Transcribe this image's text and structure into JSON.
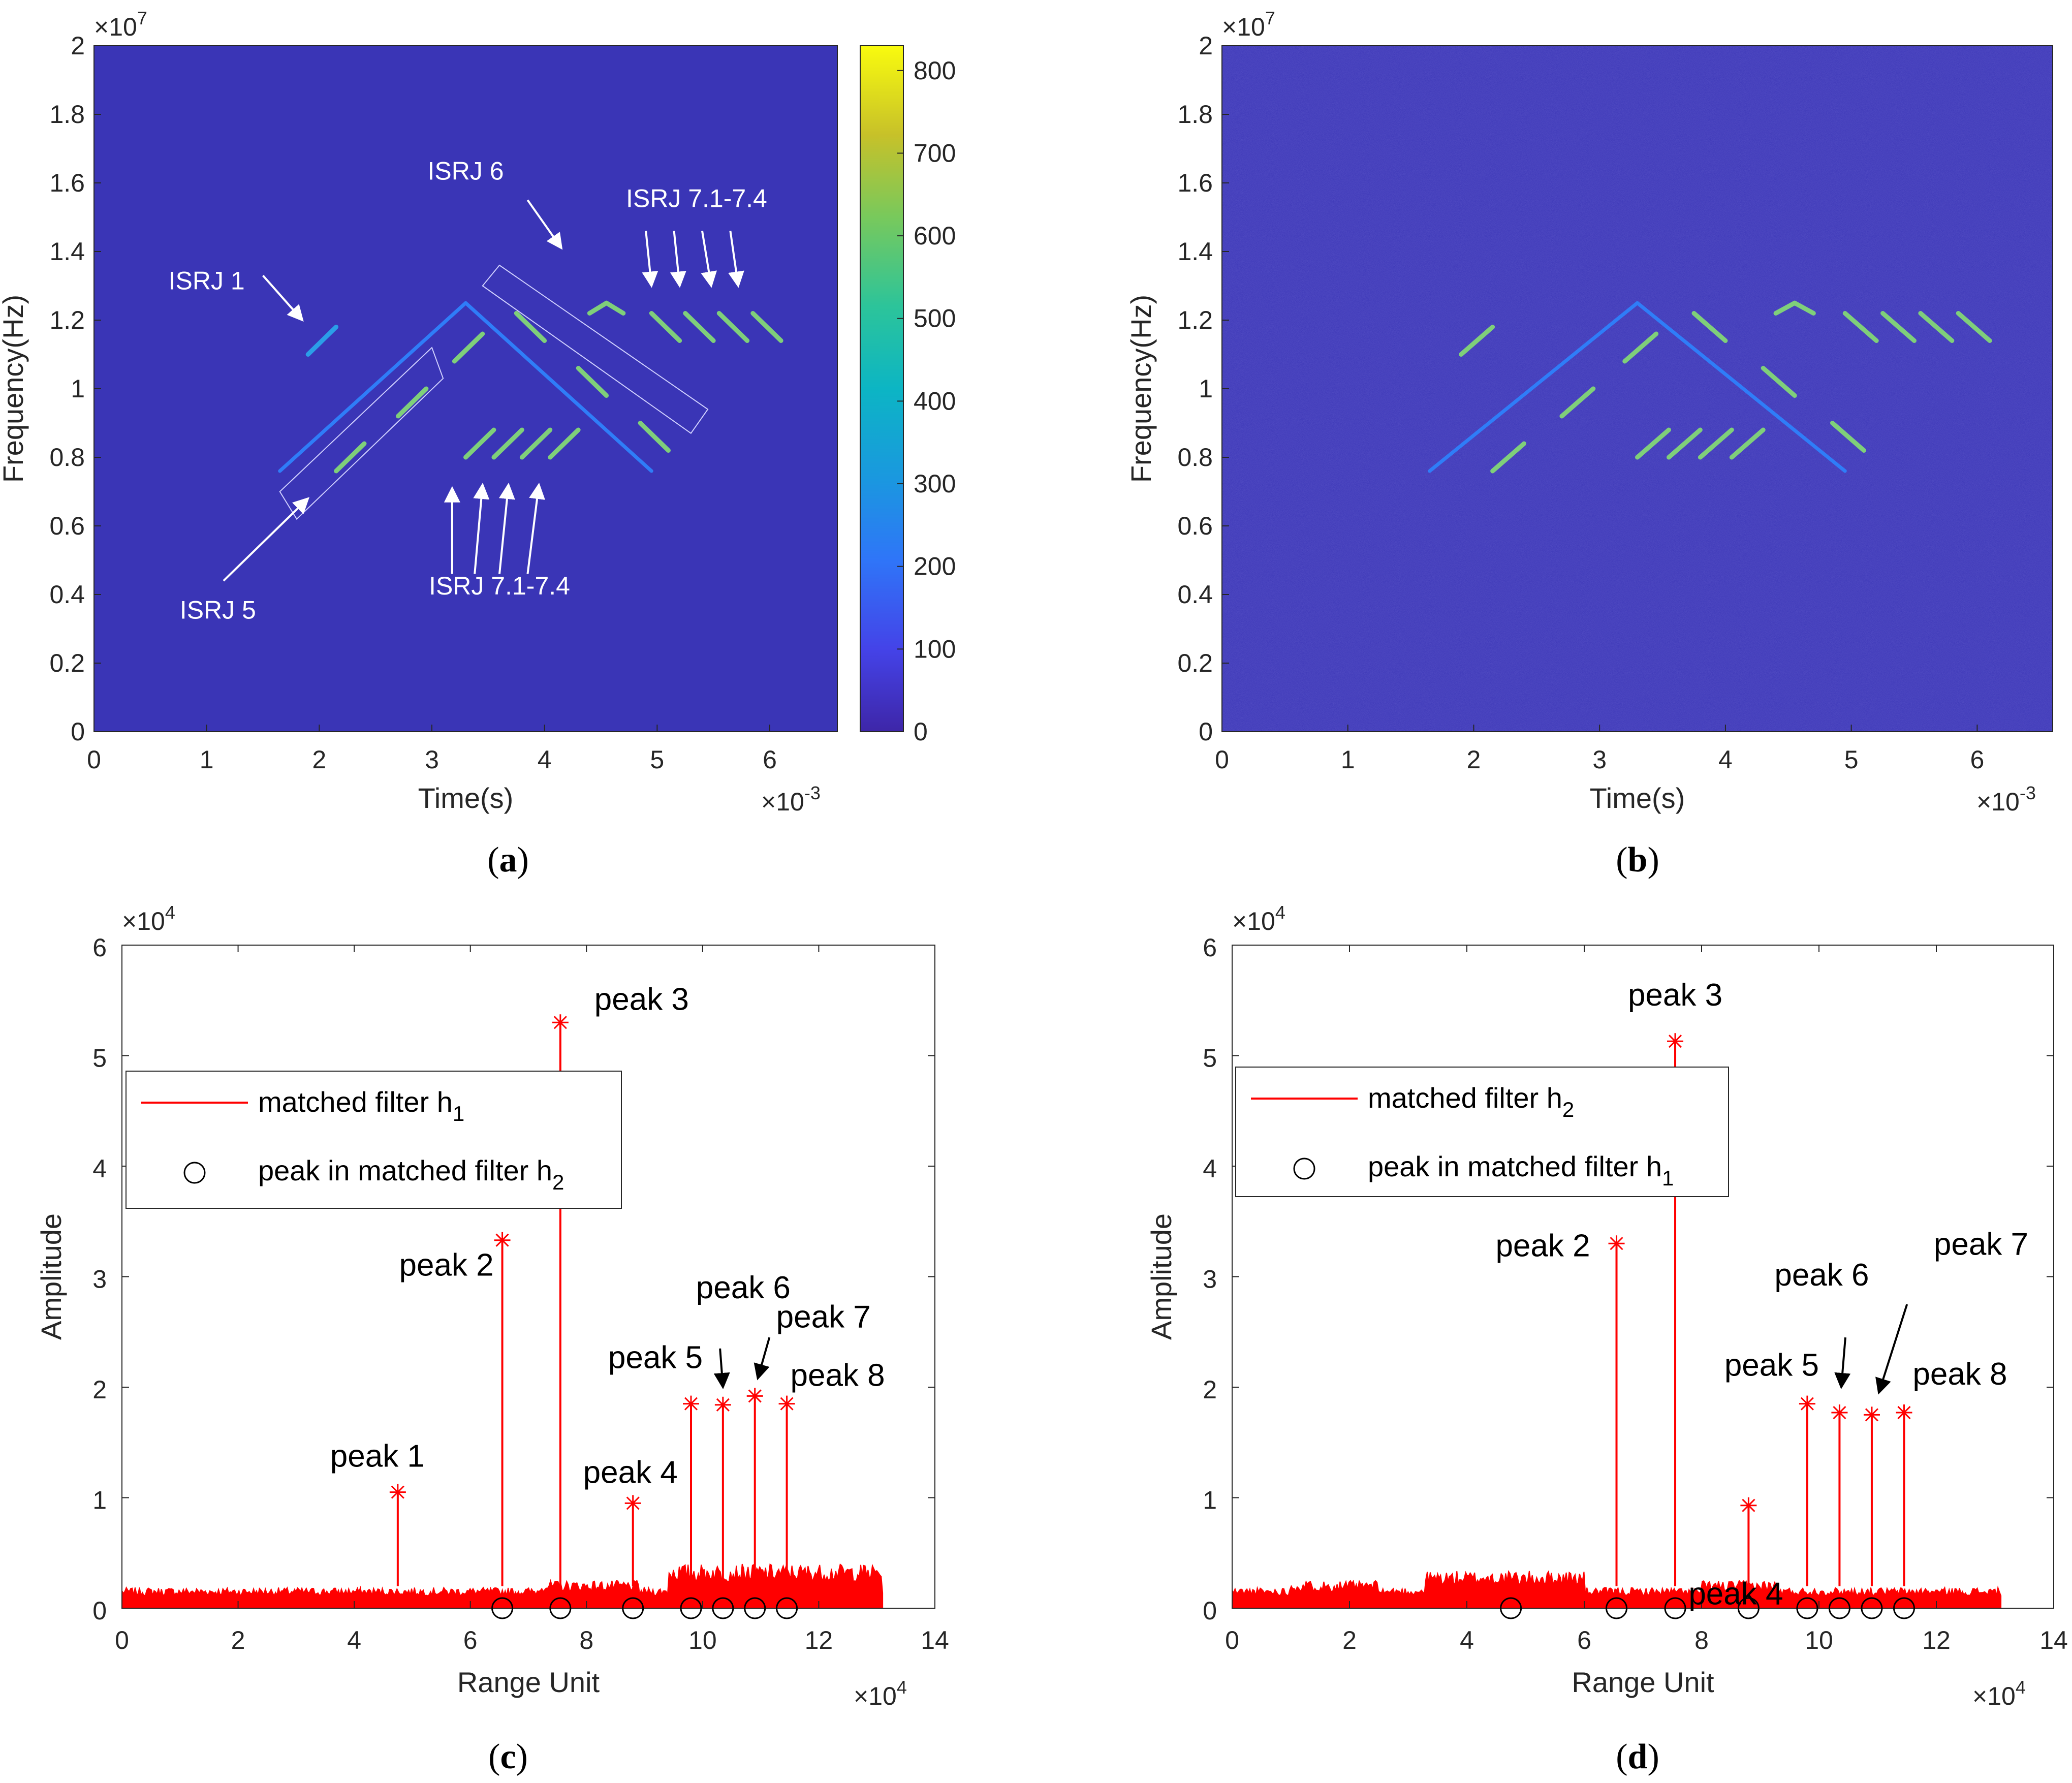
{
  "colors": {
    "background": "#3a35b6",
    "trace": "#ff0000",
    "axis": "#262626"
  },
  "chart_data": [
    {
      "panel": "a",
      "type": "heatmap",
      "caption_letter": "a",
      "xlabel": "Time(s)",
      "ylabel": "Frequency(Hz)",
      "x_exponent": "×10^-3",
      "y_exponent": "×10^7",
      "x_exponent_base": "×10",
      "x_exponent_power": "-3",
      "y_exponent_base": "×10",
      "y_exponent_power": "7",
      "xlim": [
        0,
        6.6
      ],
      "ylim": [
        0,
        2
      ],
      "xticks": [
        0,
        1,
        2,
        3,
        4,
        5,
        6
      ],
      "xtick_labels": [
        "0",
        "1",
        "2",
        "3",
        "4",
        "5",
        "6"
      ],
      "yticks": [
        0,
        0.2,
        0.4,
        0.6,
        0.8,
        1,
        1.2,
        1.4,
        1.6,
        1.8,
        2
      ],
      "ytick_labels": [
        "0",
        "0.2",
        "0.4",
        "0.6",
        "0.8",
        "1",
        "1.2",
        "1.4",
        "1.6",
        "1.8",
        "2"
      ],
      "colorbar": {
        "range": [
          0,
          830
        ],
        "ticks": [
          0,
          100,
          200,
          300,
          400,
          500,
          600,
          700,
          800
        ],
        "labels": [
          "0",
          "100",
          "200",
          "300",
          "400",
          "500",
          "600",
          "700",
          "800"
        ]
      },
      "segments": [
        {
          "x": [
            1.65,
            3.3
          ],
          "y": [
            0.76,
            1.25
          ],
          "value": 250
        },
        {
          "x": [
            3.3,
            4.95
          ],
          "y": [
            1.25,
            0.76
          ],
          "value": 250
        },
        {
          "x": [
            1.9,
            2.15
          ],
          "y": [
            1.1,
            1.18
          ],
          "value": 280
        },
        {
          "x": [
            2.15,
            2.4
          ],
          "y": [
            0.76,
            0.84
          ],
          "value": 520
        },
        {
          "x": [
            2.7,
            2.95
          ],
          "y": [
            0.92,
            1.0
          ],
          "value": 520
        },
        {
          "x": [
            3.2,
            3.45
          ],
          "y": [
            1.08,
            1.16
          ],
          "value": 520
        },
        {
          "x": [
            3.75,
            4.0
          ],
          "y": [
            1.22,
            1.14
          ],
          "value": 520
        },
        {
          "x": [
            4.3,
            4.55
          ],
          "y": [
            1.06,
            0.98
          ],
          "value": 520
        },
        {
          "x": [
            4.85,
            5.1
          ],
          "y": [
            0.9,
            0.82
          ],
          "value": 520
        },
        {
          "x": [
            3.3,
            3.55
          ],
          "y": [
            0.8,
            0.88
          ],
          "value": 520
        },
        {
          "x": [
            3.55,
            3.8
          ],
          "y": [
            0.8,
            0.88
          ],
          "value": 520
        },
        {
          "x": [
            3.8,
            4.05
          ],
          "y": [
            0.8,
            0.88
          ],
          "value": 520
        },
        {
          "x": [
            4.05,
            4.3
          ],
          "y": [
            0.8,
            0.88
          ],
          "value": 520
        },
        {
          "x": [
            4.4,
            4.55
          ],
          "y": [
            1.22,
            1.25
          ],
          "value": 520
        },
        {
          "x": [
            4.55,
            4.7
          ],
          "y": [
            1.25,
            1.22
          ],
          "value": 520
        },
        {
          "x": [
            4.95,
            5.2
          ],
          "y": [
            1.22,
            1.14
          ],
          "value": 520
        },
        {
          "x": [
            5.25,
            5.5
          ],
          "y": [
            1.22,
            1.14
          ],
          "value": 520
        },
        {
          "x": [
            5.55,
            5.8
          ],
          "y": [
            1.22,
            1.14
          ],
          "value": 520
        },
        {
          "x": [
            5.85,
            6.1
          ],
          "y": [
            1.22,
            1.14
          ],
          "value": 520
        }
      ],
      "annotations": [
        {
          "text": "ISRJ 1",
          "x": 1.0,
          "y": 1.3
        },
        {
          "text": "ISRJ 5",
          "x": 1.1,
          "y": 0.34
        },
        {
          "text": "ISRJ 6",
          "x": 3.3,
          "y": 1.62
        },
        {
          "text": "ISRJ 7.1-7.4",
          "x": 5.2,
          "y": 1.54
        },
        {
          "text": "ISRJ 7.1-7.4",
          "x": 3.6,
          "y": 0.4
        }
      ]
    },
    {
      "panel": "b",
      "type": "heatmap",
      "caption_letter": "b",
      "xlabel": "Time(s)",
      "ylabel": "Frequency(Hz)",
      "x_exponent": "×10^-3",
      "y_exponent": "×10^7",
      "x_exponent_base": "×10",
      "x_exponent_power": "-3",
      "y_exponent_base": "×10",
      "y_exponent_power": "7",
      "xlim": [
        0,
        6.6
      ],
      "ylim": [
        0,
        2
      ],
      "xticks": [
        0,
        1,
        2,
        3,
        4,
        5,
        6
      ],
      "xtick_labels": [
        "0",
        "1",
        "2",
        "3",
        "4",
        "5",
        "6"
      ],
      "yticks": [
        0,
        0.2,
        0.4,
        0.6,
        0.8,
        1,
        1.2,
        1.4,
        1.6,
        1.8,
        2
      ],
      "ytick_labels": [
        "0",
        "0.2",
        "0.4",
        "0.6",
        "0.8",
        "1",
        "1.2",
        "1.4",
        "1.6",
        "1.8",
        "2"
      ],
      "segments": [
        {
          "x": [
            1.65,
            3.3
          ],
          "y": [
            0.76,
            1.25
          ]
        },
        {
          "x": [
            3.3,
            4.95
          ],
          "y": [
            1.25,
            0.76
          ]
        },
        {
          "x": [
            1.9,
            2.15
          ],
          "y": [
            1.1,
            1.18
          ]
        },
        {
          "x": [
            2.15,
            2.4
          ],
          "y": [
            0.76,
            0.84
          ]
        },
        {
          "x": [
            2.7,
            2.95
          ],
          "y": [
            0.92,
            1.0
          ]
        },
        {
          "x": [
            3.2,
            3.45
          ],
          "y": [
            1.08,
            1.16
          ]
        },
        {
          "x": [
            3.75,
            4.0
          ],
          "y": [
            1.22,
            1.14
          ]
        },
        {
          "x": [
            4.3,
            4.55
          ],
          "y": [
            1.06,
            0.98
          ]
        },
        {
          "x": [
            4.85,
            5.1
          ],
          "y": [
            0.9,
            0.82
          ]
        },
        {
          "x": [
            3.3,
            3.55
          ],
          "y": [
            0.8,
            0.88
          ]
        },
        {
          "x": [
            3.55,
            3.8
          ],
          "y": [
            0.8,
            0.88
          ]
        },
        {
          "x": [
            3.8,
            4.05
          ],
          "y": [
            0.8,
            0.88
          ]
        },
        {
          "x": [
            4.05,
            4.3
          ],
          "y": [
            0.8,
            0.88
          ]
        },
        {
          "x": [
            4.4,
            4.55
          ],
          "y": [
            1.22,
            1.25
          ]
        },
        {
          "x": [
            4.55,
            4.7
          ],
          "y": [
            1.25,
            1.22
          ]
        },
        {
          "x": [
            4.95,
            5.2
          ],
          "y": [
            1.22,
            1.14
          ]
        },
        {
          "x": [
            5.25,
            5.5
          ],
          "y": [
            1.22,
            1.14
          ]
        },
        {
          "x": [
            5.55,
            5.8
          ],
          "y": [
            1.22,
            1.14
          ]
        },
        {
          "x": [
            5.85,
            6.1
          ],
          "y": [
            1.22,
            1.14
          ]
        }
      ]
    },
    {
      "panel": "c",
      "type": "line",
      "caption_letter": "c",
      "xlabel": "Range Unit",
      "ylabel": "Amplitude",
      "x_exponent": "×10^4",
      "y_exponent": "×10^4",
      "x_exponent_base": "×10",
      "x_exponent_power": "4",
      "y_exponent_base": "×10",
      "y_exponent_power": "4",
      "xlim": [
        0,
        14
      ],
      "ylim": [
        0,
        6
      ],
      "xticks": [
        0,
        2,
        4,
        6,
        8,
        10,
        12,
        14
      ],
      "xtick_labels": [
        "0",
        "2",
        "4",
        "6",
        "8",
        "10",
        "12",
        "14"
      ],
      "yticks": [
        0,
        1,
        2,
        3,
        4,
        5,
        6
      ],
      "ytick_labels": [
        "0",
        "1",
        "2",
        "3",
        "4",
        "5",
        "6"
      ],
      "data_end_x": 13.1,
      "noise_floor": 0.15,
      "legend": [
        {
          "label": "matched filter h",
          "sub": "1",
          "marker": "line"
        },
        {
          "label": "peak in matched filter h",
          "sub": "2",
          "marker": "circle"
        }
      ],
      "peaks": [
        {
          "name": "peak 1",
          "x": 4.75,
          "y": 1.05
        },
        {
          "name": "peak 2",
          "x": 6.55,
          "y": 3.33
        },
        {
          "name": "peak 3",
          "x": 7.55,
          "y": 5.3
        },
        {
          "name": "peak 4",
          "x": 8.8,
          "y": 0.95
        },
        {
          "name": "peak 5",
          "x": 9.8,
          "y": 1.85
        },
        {
          "name": "peak 6",
          "x": 10.35,
          "y": 1.84
        },
        {
          "name": "peak 7",
          "x": 10.9,
          "y": 1.92
        },
        {
          "name": "peak 8",
          "x": 11.45,
          "y": 1.85
        }
      ],
      "circle_markers_x": [
        6.55,
        7.55,
        8.8,
        9.8,
        10.35,
        10.9,
        11.45
      ]
    },
    {
      "panel": "d",
      "type": "line",
      "caption_letter": "d",
      "xlabel": "Range Unit",
      "ylabel": "Amplitude",
      "x_exponent": "×10^4",
      "y_exponent": "×10^4",
      "x_exponent_base": "×10",
      "x_exponent_power": "4",
      "y_exponent_base": "×10",
      "y_exponent_power": "4",
      "xlim": [
        0,
        14
      ],
      "ylim": [
        0,
        6
      ],
      "xticks": [
        0,
        2,
        4,
        6,
        8,
        10,
        12,
        14
      ],
      "xtick_labels": [
        "0",
        "2",
        "4",
        "6",
        "8",
        "10",
        "12",
        "14"
      ],
      "yticks": [
        0,
        1,
        2,
        3,
        4,
        5,
        6
      ],
      "ytick_labels": [
        "0",
        "1",
        "2",
        "3",
        "4",
        "5",
        "6"
      ],
      "data_end_x": 13.1,
      "noise_floor": 0.15,
      "legend": [
        {
          "label": "matched filter h",
          "sub": "2",
          "marker": "line"
        },
        {
          "label": "peak in matched filter h",
          "sub": "1",
          "marker": "circle"
        }
      ],
      "peaks": [
        {
          "name": "peak 2",
          "x": 6.55,
          "y": 3.3
        },
        {
          "name": "peak 3",
          "x": 7.55,
          "y": 5.13
        },
        {
          "name": "peak 4",
          "x": 8.8,
          "y": 0.93
        },
        {
          "name": "peak 5",
          "x": 9.8,
          "y": 1.85
        },
        {
          "name": "peak 6",
          "x": 10.35,
          "y": 1.77
        },
        {
          "name": "peak 7",
          "x": 10.9,
          "y": 1.75
        },
        {
          "name": "peak 8",
          "x": 11.45,
          "y": 1.77
        }
      ],
      "circle_markers_x": [
        4.75,
        6.55,
        7.55,
        8.8,
        9.8,
        10.35,
        10.9,
        11.45
      ]
    }
  ]
}
